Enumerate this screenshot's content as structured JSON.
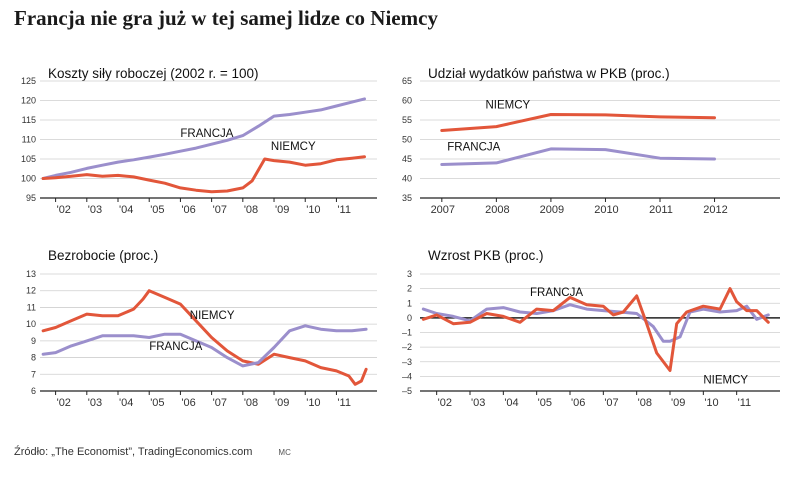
{
  "title": "Francja nie gra już w tej samej lidze co Niemcy",
  "source": "Źródło: „The Economist”, TradingEconomics.com",
  "credit": "MC",
  "colors": {
    "niemcy": "#e2563a",
    "francja": "#9b8fcc",
    "grid": "#cfcfcf",
    "axis": "#222222",
    "text": "#333333"
  },
  "chart_data": [
    {
      "type": "line",
      "title": "Koszty siły roboczej (2002 r. = 100)",
      "ylim": [
        95,
        125
      ],
      "yticks": [
        95,
        100,
        105,
        110,
        115,
        120,
        125
      ],
      "xlim": [
        2001.5,
        2012.3
      ],
      "xticks": [
        2002,
        2003,
        2004,
        2005,
        2006,
        2007,
        2008,
        2009,
        2010,
        2011
      ],
      "xtick_labels": [
        "'02",
        "'03",
        "'04",
        "'05",
        "'06",
        "'07",
        "'08",
        "'09",
        "'10",
        "'11"
      ],
      "zero_line": null,
      "series": [
        {
          "name": "FRANCJA",
          "color": "#9b8fcc",
          "x": [
            2001.6,
            2002.0,
            2002.5,
            2003.0,
            2003.5,
            2004.0,
            2004.5,
            2005.0,
            2005.5,
            2006.0,
            2006.5,
            2007.0,
            2007.5,
            2008.0,
            2008.5,
            2009.0,
            2009.5,
            2010.0,
            2010.5,
            2011.0,
            2011.5,
            2011.9
          ],
          "y": [
            100,
            100.8,
            101.6,
            102.6,
            103.4,
            104.2,
            104.8,
            105.5,
            106.2,
            107.0,
            107.8,
            108.8,
            109.8,
            111.0,
            113.4,
            116.0,
            116.4,
            117.0,
            117.6,
            118.6,
            119.6,
            120.4
          ]
        },
        {
          "name": "NIEMCY",
          "color": "#e2563a",
          "x": [
            2001.6,
            2002.0,
            2002.5,
            2003.0,
            2003.5,
            2004.0,
            2004.5,
            2005.0,
            2005.5,
            2006.0,
            2006.5,
            2007.0,
            2007.5,
            2008.0,
            2008.3,
            2008.7,
            2009.0,
            2009.5,
            2010.0,
            2010.5,
            2011.0,
            2011.5,
            2011.9
          ],
          "y": [
            100,
            100.2,
            100.6,
            101.0,
            100.6,
            100.8,
            100.4,
            99.6,
            98.8,
            97.6,
            97.0,
            96.6,
            96.8,
            97.6,
            99.4,
            105.0,
            104.6,
            104.2,
            103.4,
            103.8,
            104.8,
            105.2,
            105.6
          ]
        }
      ],
      "labels": [
        {
          "text": "FRANCJA",
          "x": 2006.0,
          "y": 110.6
        },
        {
          "text": "NIEMCY",
          "x": 2008.9,
          "y": 107.3
        }
      ]
    },
    {
      "type": "line",
      "title": "Udział wydatków państwa w PKB (proc.)",
      "ylim": [
        35,
        65
      ],
      "yticks": [
        35,
        40,
        45,
        50,
        55,
        60,
        65
      ],
      "xlim": [
        2006.6,
        2013.2
      ],
      "xticks": [
        2007,
        2008,
        2009,
        2010,
        2011,
        2012
      ],
      "xtick_labels": [
        "2007",
        "2008",
        "2009",
        "2010",
        "2011",
        "2012"
      ],
      "zero_line": null,
      "series": [
        {
          "name": "NIEMCY",
          "color": "#e2563a",
          "x": [
            2007.0,
            2008.0,
            2009.0,
            2010.0,
            2011.0,
            2012.0
          ],
          "y": [
            52.3,
            53.3,
            56.4,
            56.3,
            55.8,
            55.6
          ]
        },
        {
          "name": "FRANCJA",
          "color": "#9b8fcc",
          "x": [
            2007.0,
            2008.0,
            2009.0,
            2010.0,
            2011.0,
            2012.0
          ],
          "y": [
            43.6,
            44.0,
            47.6,
            47.4,
            45.2,
            45.0
          ]
        }
      ],
      "labels": [
        {
          "text": "NIEMCY",
          "x": 2007.8,
          "y": 58.0
        },
        {
          "text": "FRANCJA",
          "x": 2007.1,
          "y": 47.2
        }
      ]
    },
    {
      "type": "line",
      "title": "Bezrobocie (proc.)",
      "ylim": [
        6,
        13
      ],
      "yticks": [
        6,
        7,
        8,
        9,
        10,
        11,
        12,
        13
      ],
      "xlim": [
        2001.5,
        2012.3
      ],
      "xticks": [
        2002,
        2003,
        2004,
        2005,
        2006,
        2007,
        2008,
        2009,
        2010,
        2011
      ],
      "xtick_labels": [
        "'02",
        "'03",
        "'04",
        "'05",
        "'06",
        "'07",
        "'08",
        "'09",
        "'10",
        "'11"
      ],
      "zero_line": null,
      "series": [
        {
          "name": "NIEMCY",
          "color": "#e2563a",
          "x": [
            2001.6,
            2002.0,
            2002.5,
            2003.0,
            2003.5,
            2004.0,
            2004.5,
            2004.8,
            2005.0,
            2005.5,
            2006.0,
            2006.5,
            2007.0,
            2007.5,
            2008.0,
            2008.5,
            2009.0,
            2009.5,
            2010.0,
            2010.5,
            2011.0,
            2011.4,
            2011.6,
            2011.8,
            2011.95
          ],
          "y": [
            9.6,
            9.8,
            10.2,
            10.6,
            10.5,
            10.5,
            10.9,
            11.5,
            12.0,
            11.6,
            11.2,
            10.2,
            9.2,
            8.4,
            7.8,
            7.6,
            8.2,
            8.0,
            7.8,
            7.4,
            7.2,
            6.9,
            6.4,
            6.6,
            7.3
          ]
        },
        {
          "name": "FRANCJA",
          "color": "#9b8fcc",
          "x": [
            2001.6,
            2002.0,
            2002.5,
            2003.0,
            2003.5,
            2004.0,
            2004.5,
            2005.0,
            2005.5,
            2006.0,
            2006.5,
            2007.0,
            2007.5,
            2008.0,
            2008.5,
            2009.0,
            2009.5,
            2010.0,
            2010.5,
            2011.0,
            2011.5,
            2011.95
          ],
          "y": [
            8.2,
            8.3,
            8.7,
            9.0,
            9.3,
            9.3,
            9.3,
            9.2,
            9.4,
            9.4,
            9.0,
            8.6,
            8.0,
            7.5,
            7.7,
            8.6,
            9.6,
            9.9,
            9.7,
            9.6,
            9.6,
            9.7
          ]
        }
      ],
      "labels": [
        {
          "text": "NIEMCY",
          "x": 2006.3,
          "y": 10.3
        },
        {
          "text": "FRANCJA",
          "x": 2005.0,
          "y": 8.45
        }
      ]
    },
    {
      "type": "line",
      "title": "Wzrost PKB (proc.)",
      "ylim": [
        -5,
        3
      ],
      "yticks": [
        -5,
        -4,
        -3,
        -2,
        -1,
        0,
        1,
        2,
        3
      ],
      "ytick_labels": [
        "–5",
        "–4",
        "–3",
        "–2",
        "–1",
        "0",
        "1",
        "2",
        "3"
      ],
      "xlim": [
        2001.5,
        2012.3
      ],
      "xticks": [
        2002,
        2003,
        2004,
        2005,
        2006,
        2007,
        2008,
        2009,
        2010,
        2011
      ],
      "xtick_labels": [
        "'02",
        "'03",
        "'04",
        "'05",
        "'06",
        "'07",
        "'08",
        "'09",
        "'10",
        "'11"
      ],
      "zero_line": 0,
      "series": [
        {
          "name": "FRANCJA",
          "color": "#9b8fcc",
          "x": [
            2001.6,
            2002.0,
            2002.5,
            2003.0,
            2003.5,
            2004.0,
            2004.5,
            2005.0,
            2005.5,
            2006.0,
            2006.5,
            2007.0,
            2007.5,
            2008.0,
            2008.5,
            2008.8,
            2009.0,
            2009.3,
            2009.6,
            2010.0,
            2010.5,
            2011.0,
            2011.3,
            2011.6,
            2011.95
          ],
          "y": [
            0.6,
            0.3,
            0.1,
            -0.2,
            0.6,
            0.7,
            0.4,
            0.3,
            0.5,
            0.9,
            0.6,
            0.5,
            0.4,
            0.3,
            -0.6,
            -1.6,
            -1.6,
            -1.3,
            0.4,
            0.6,
            0.4,
            0.5,
            0.8,
            -0.1,
            0.2
          ]
        },
        {
          "name": "NIEMCY",
          "color": "#e2563a",
          "x": [
            2001.6,
            2002.0,
            2002.5,
            2003.0,
            2003.5,
            2004.0,
            2004.5,
            2005.0,
            2005.5,
            2006.0,
            2006.5,
            2007.0,
            2007.3,
            2007.6,
            2008.0,
            2008.3,
            2008.6,
            2009.0,
            2009.2,
            2009.5,
            2010.0,
            2010.5,
            2010.8,
            2011.0,
            2011.3,
            2011.6,
            2011.95
          ],
          "y": [
            -0.1,
            0.2,
            -0.4,
            -0.3,
            0.3,
            0.1,
            -0.3,
            0.6,
            0.5,
            1.4,
            0.9,
            0.8,
            0.2,
            0.4,
            1.5,
            -0.4,
            -2.4,
            -3.6,
            -0.4,
            0.4,
            0.8,
            0.6,
            2.0,
            1.1,
            0.5,
            0.5,
            -0.3
          ]
        }
      ],
      "labels": [
        {
          "text": "FRANCJA",
          "x": 2004.8,
          "y": 1.5
        },
        {
          "text": "NIEMCY",
          "x": 2010.0,
          "y": -4.5
        }
      ]
    }
  ]
}
